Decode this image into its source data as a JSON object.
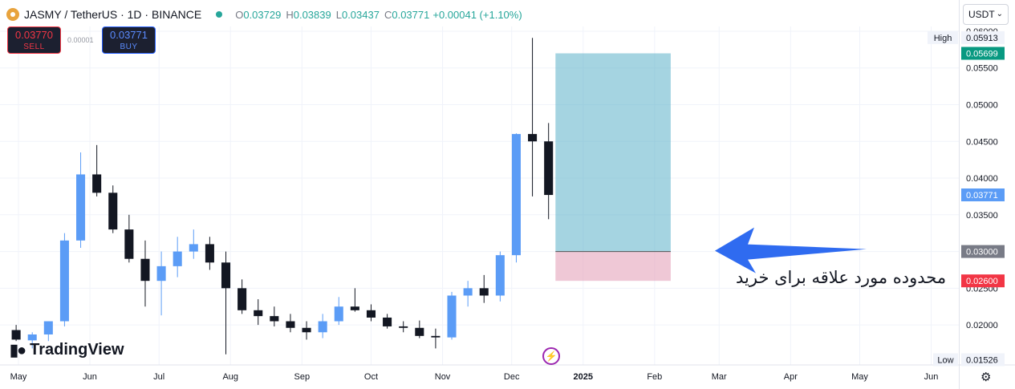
{
  "header": {
    "symbol": "JASMY / TetherUS · 1D · BINANCE",
    "open_key": "O",
    "open": "0.03729",
    "high_key": "H",
    "high": "0.03839",
    "low_key": "L",
    "low": "0.03437",
    "close_key": "C",
    "close": "0.03771",
    "change": "+0.00041 (+1.10%)"
  },
  "trade": {
    "sell_price": "0.03770",
    "sell_label": "SELL",
    "buy_price": "0.03771",
    "buy_label": "BUY",
    "spread": "0.00001"
  },
  "currency_selector": "USDT",
  "branding": "TradingView",
  "colors": {
    "up": "#5b9cf6",
    "down": "#131722",
    "profit_zone": "#5bb0c8",
    "loss_zone": "#e5a3bb",
    "arrow": "#2f6bf0",
    "stop_tag": "#f23645",
    "last_price_tag": "#5b9cf6",
    "target_tag": "#089981"
  },
  "annotation_text": "محدوده مورد علاقه برای خرید",
  "chart_data": {
    "type": "candlestick",
    "title": "JASMY / TetherUS · 1D · BINANCE",
    "x_axis": [
      "May",
      "Jun",
      "Jul",
      "Aug",
      "Sep",
      "Oct",
      "Nov",
      "Dec",
      "2025",
      "Feb",
      "Mar",
      "Apr",
      "May",
      "Jun"
    ],
    "x_range": [
      "2024-04-23",
      "2025-06-13"
    ],
    "y_axis_ticks": [
      "0.06000",
      "0.05500",
      "0.05000",
      "0.04500",
      "0.04000",
      "0.03500",
      "0.03000",
      "0.02500",
      "0.02000"
    ],
    "ylim": [
      0.01455,
      0.06065
    ],
    "grid": true,
    "series": [
      {
        "name": "JASMYUSDT",
        "x": [
          "2024-04-30",
          "2024-05-07",
          "2024-05-14",
          "2024-05-21",
          "2024-05-28",
          "2024-06-04",
          "2024-06-11",
          "2024-06-18",
          "2024-06-25",
          "2024-07-02",
          "2024-07-09",
          "2024-07-16",
          "2024-07-23",
          "2024-07-30",
          "2024-08-06",
          "2024-08-13",
          "2024-08-20",
          "2024-08-27",
          "2024-09-03",
          "2024-09-10",
          "2024-09-17",
          "2024-09-24",
          "2024-10-01",
          "2024-10-08",
          "2024-10-15",
          "2024-10-22",
          "2024-10-29",
          "2024-11-05",
          "2024-11-12",
          "2024-11-19",
          "2024-11-26",
          "2024-12-03",
          "2024-12-10",
          "2024-12-17"
        ],
        "open": [
          0.0193,
          0.0179,
          0.0187,
          0.0205,
          0.0315,
          0.0405,
          0.038,
          0.033,
          0.029,
          0.026,
          0.028,
          0.03,
          0.031,
          0.0285,
          0.025,
          0.022,
          0.0212,
          0.0205,
          0.0196,
          0.019,
          0.0205,
          0.0225,
          0.022,
          0.021,
          0.0198,
          0.0196,
          0.0185,
          0.0183,
          0.024,
          0.025,
          0.024,
          0.0295,
          0.046,
          0.045
        ],
        "high": [
          0.02,
          0.019,
          0.0205,
          0.0325,
          0.0435,
          0.0445,
          0.039,
          0.035,
          0.0315,
          0.03,
          0.032,
          0.033,
          0.032,
          0.03,
          0.0262,
          0.0235,
          0.0225,
          0.0215,
          0.0205,
          0.0215,
          0.0238,
          0.025,
          0.0228,
          0.0215,
          0.0205,
          0.0206,
          0.0195,
          0.0245,
          0.026,
          0.0268,
          0.03,
          0.0461,
          0.0591,
          0.0475
        ],
        "low": [
          0.0178,
          0.0168,
          0.0178,
          0.0198,
          0.0305,
          0.0375,
          0.0325,
          0.0285,
          0.0225,
          0.0213,
          0.0265,
          0.029,
          0.0275,
          0.016,
          0.0215,
          0.02,
          0.0198,
          0.019,
          0.018,
          0.0182,
          0.02,
          0.0218,
          0.0205,
          0.0195,
          0.019,
          0.0182,
          0.0168,
          0.018,
          0.0225,
          0.023,
          0.0232,
          0.0285,
          0.0375,
          0.0344
        ],
        "close": [
          0.018,
          0.0187,
          0.0205,
          0.0315,
          0.0405,
          0.038,
          0.033,
          0.029,
          0.026,
          0.028,
          0.03,
          0.031,
          0.0285,
          0.025,
          0.022,
          0.0212,
          0.0205,
          0.0196,
          0.019,
          0.0205,
          0.0225,
          0.022,
          0.021,
          0.0198,
          0.0196,
          0.0185,
          0.0183,
          0.024,
          0.025,
          0.024,
          0.0295,
          0.046,
          0.045,
          0.0377
        ]
      }
    ],
    "position_tool": {
      "entry": 0.03,
      "target": 0.05699,
      "stop": 0.026,
      "start": "2024-12-20",
      "end": "2025-02-08"
    },
    "price_tags": [
      {
        "label": "High",
        "value": "0.05913",
        "price": 0.05913
      },
      {
        "label": "",
        "value": "0.05699",
        "price": 0.05699
      },
      {
        "label": "",
        "value": "0.03771",
        "price": 0.03771
      },
      {
        "label": "",
        "value": "0.03000",
        "price": 0.03
      },
      {
        "label": "",
        "value": "0.02600",
        "price": 0.026
      },
      {
        "label": "Low",
        "value": "0.01526",
        "price": 0.01526
      }
    ]
  }
}
